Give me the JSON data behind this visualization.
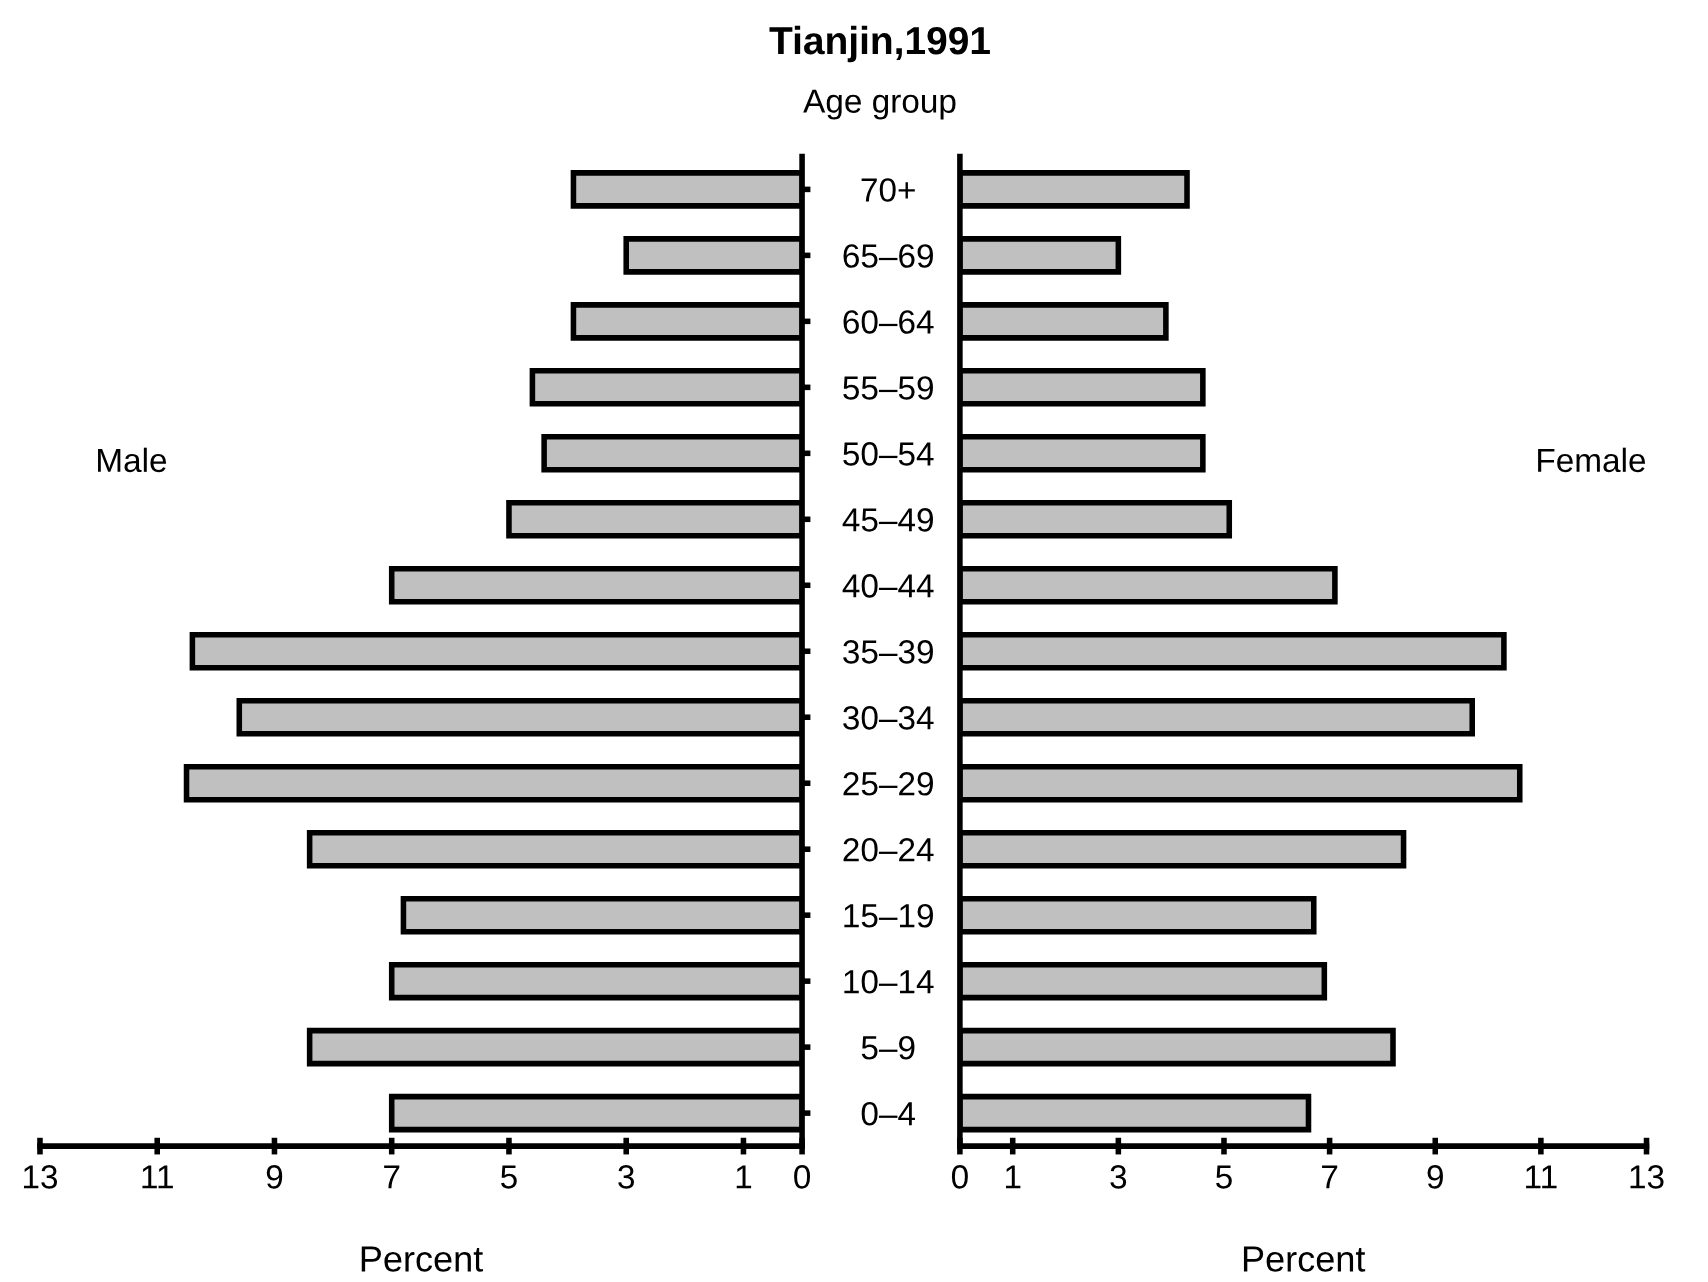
{
  "chart_data": [
    {
      "type": "bar",
      "orientation": "horizontal",
      "title": "Tianjin,1991",
      "xlabel": "Percent",
      "annotations": [
        "Age group"
      ],
      "categories": [
        "70+",
        "65–69",
        "60–64",
        "55–59",
        "50–54",
        "45–49",
        "40–44",
        "35–39",
        "30–34",
        "25–29",
        "20–24",
        "15–19",
        "10–14",
        "5–9",
        "0–4"
      ],
      "series": [
        {
          "name": "Male",
          "color": "#c0c0c0",
          "values": [
            3.9,
            3.0,
            3.9,
            4.6,
            4.4,
            5.0,
            7.0,
            10.4,
            9.6,
            10.5,
            8.4,
            6.8,
            7.0,
            8.4,
            7.0
          ]
        }
      ],
      "xlim": [
        13,
        0
      ],
      "xticks": [
        13,
        11,
        9,
        7,
        5,
        3,
        1,
        0
      ]
    },
    {
      "type": "bar",
      "orientation": "horizontal",
      "xlabel": "Percent",
      "tick_labels": "x",
      "categories": [
        null,
        null,
        null,
        null,
        null,
        null,
        null,
        null,
        null,
        null,
        null,
        null,
        null,
        null,
        null
      ],
      "series": [
        {
          "name": "Female",
          "color": "#c0c0c0",
          "values": [
            4.3,
            3.0,
            3.9,
            4.6,
            4.6,
            5.1,
            7.1,
            10.3,
            9.7,
            10.6,
            8.4,
            6.7,
            6.9,
            8.2,
            6.6
          ]
        }
      ],
      "xlim": [
        0,
        13
      ],
      "xticks": [
        0,
        1,
        3,
        5,
        7,
        9,
        11,
        13
      ]
    }
  ]
}
